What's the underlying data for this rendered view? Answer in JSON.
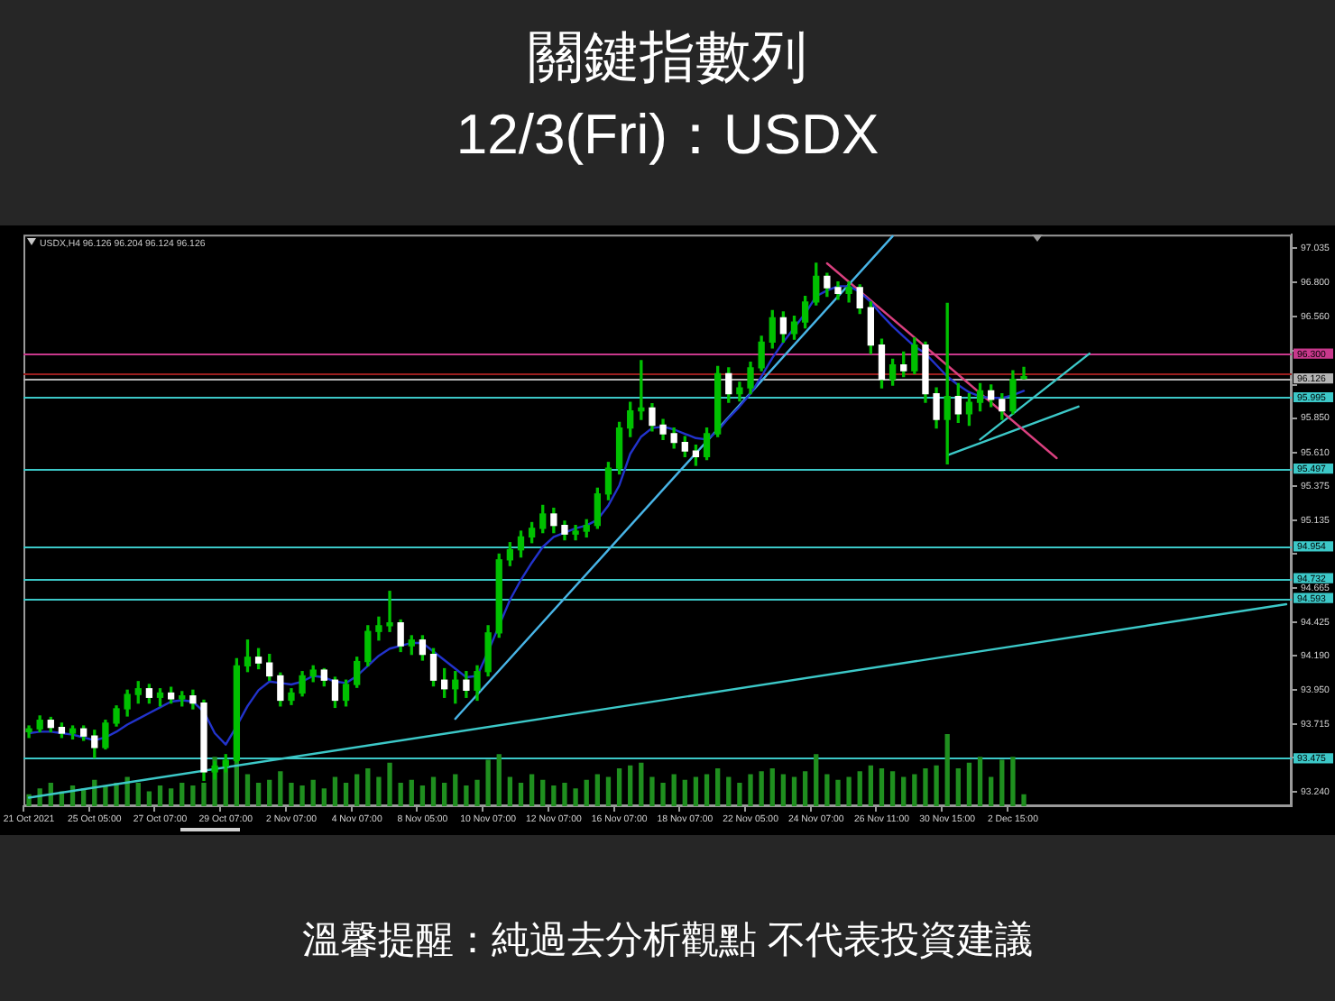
{
  "chart_data": {
    "type": "candlestick",
    "title": "關鍵指數列",
    "subtitle": "12/3(Fri)：USDX",
    "annotations": [
      "USDX,H4 96.126 96.204 96.124 96.126",
      "溫馨提醒：純過去分析觀點 不代表投資建議"
    ],
    "categories": [
      "21 Oct 2021",
      null,
      null,
      null,
      null,
      null,
      "25 Oct 05:00",
      null,
      null,
      null,
      null,
      null,
      "27 Oct 07:00",
      null,
      null,
      null,
      null,
      null,
      "29 Oct 07:00",
      null,
      null,
      null,
      null,
      null,
      "2 Nov 07:00",
      null,
      null,
      null,
      null,
      null,
      "4 Nov 07:00",
      null,
      null,
      null,
      null,
      null,
      "8 Nov 05:00",
      null,
      null,
      null,
      null,
      null,
      "10 Nov 07:00",
      null,
      null,
      null,
      null,
      null,
      "12 Nov 07:00",
      null,
      null,
      null,
      null,
      null,
      "16 Nov 07:00",
      null,
      null,
      null,
      null,
      null,
      "18 Nov 07:00",
      null,
      null,
      null,
      null,
      null,
      "22 Nov 05:00",
      null,
      null,
      null,
      null,
      null,
      "24 Nov 07:00",
      null,
      null,
      null,
      null,
      null,
      "26 Nov 11:00",
      null,
      null,
      null,
      null,
      null,
      "30 Nov 15:00",
      null,
      null,
      null,
      null,
      null,
      "2 Dec 15:00",
      null,
      null,
      null,
      null,
      null,
      null,
      null,
      null,
      null,
      null,
      null,
      null,
      null,
      null,
      null,
      null,
      null,
      null,
      null,
      null,
      null,
      null,
      null,
      null,
      null
    ],
    "color": "#00c000",
    "colors": [
      "#00c000",
      "#00c000",
      "#ffffff",
      "#ffffff",
      "#00c000",
      "#ffffff",
      "#ffffff",
      "#00c000",
      "#00c000",
      "#00c000",
      "#00c000",
      "#ffffff",
      "#00c000",
      "#ffffff",
      "#00c000",
      "#ffffff",
      "#ffffff",
      "#00c000",
      "#00c000",
      "#00c000",
      "#00c000",
      "#ffffff",
      "#ffffff",
      "#ffffff",
      "#00c000",
      "#00c000",
      "#00c000",
      "#ffffff",
      "#ffffff",
      "#00c000",
      "#00c000",
      "#00c000",
      "#00c000",
      "#00c000",
      "#ffffff",
      "#00c000",
      "#ffffff",
      "#ffffff",
      "#ffffff",
      "#00c000",
      "#ffffff",
      "#00c000",
      "#00c000",
      "#00c000",
      "#00c000",
      "#00c000",
      "#00c000",
      "#00c000",
      "#ffffff",
      "#ffffff",
      "#00c000",
      "#00c000",
      "#00c000",
      "#00c000",
      "#00c000",
      "#00c000",
      "#00c000",
      "#ffffff",
      "#ffffff",
      "#ffffff",
      "#ffffff",
      "#ffffff",
      "#00c000",
      "#00c000",
      "#ffffff",
      "#00c000",
      "#00c000",
      "#00c000",
      "#00c000",
      "#ffffff",
      "#00c000",
      "#00c000",
      "#00c000",
      "#ffffff",
      "#ffffff",
      "#00c000",
      "#ffffff",
      "#ffffff",
      "#ffffff",
      "#00c000",
      "#ffffff",
      "#00c000",
      "#ffffff",
      "#ffffff",
      "#00c000",
      "#ffffff",
      "#00c000",
      "#00c000",
      "#ffffff",
      "#ffffff",
      "#00c000",
      "#00c000",
      null,
      null,
      null,
      null,
      null,
      null,
      null,
      null,
      null,
      null,
      null,
      null,
      null,
      null,
      null,
      null,
      null,
      null,
      null,
      null,
      null,
      null,
      null,
      null
    ],
    "ohlc": [
      [
        93.66,
        93.7,
        93.62,
        93.68
      ],
      [
        93.68,
        93.77,
        93.66,
        93.74
      ],
      [
        93.74,
        93.76,
        93.66,
        93.69
      ],
      [
        93.69,
        93.72,
        93.62,
        93.65
      ],
      [
        93.65,
        93.7,
        93.61,
        93.68
      ],
      [
        93.68,
        93.7,
        93.6,
        93.63
      ],
      [
        93.63,
        93.67,
        93.48,
        93.55
      ],
      [
        93.55,
        93.74,
        93.54,
        93.72
      ],
      [
        93.72,
        93.84,
        93.7,
        93.82
      ],
      [
        93.82,
        93.95,
        93.77,
        93.92
      ],
      [
        93.92,
        94.01,
        93.86,
        93.96
      ],
      [
        93.96,
        93.99,
        93.86,
        93.9
      ],
      [
        93.9,
        93.96,
        93.84,
        93.93
      ],
      [
        93.93,
        93.97,
        93.86,
        93.89
      ],
      [
        93.89,
        93.94,
        93.84,
        93.91
      ],
      [
        93.91,
        93.95,
        93.82,
        93.86
      ],
      [
        93.86,
        93.88,
        93.32,
        93.38
      ],
      [
        93.38,
        93.45,
        93.33,
        93.42
      ],
      [
        93.42,
        93.5,
        93.38,
        93.46
      ],
      [
        93.46,
        94.17,
        93.45,
        94.12
      ],
      [
        94.12,
        94.3,
        94.08,
        94.18
      ],
      [
        94.18,
        94.24,
        94.1,
        94.14
      ],
      [
        94.14,
        94.2,
        94.02,
        94.05
      ],
      [
        94.05,
        94.07,
        93.84,
        93.88
      ],
      [
        93.88,
        93.96,
        93.85,
        93.93
      ],
      [
        93.93,
        94.08,
        93.91,
        94.05
      ],
      [
        94.05,
        94.12,
        94.01,
        94.09
      ],
      [
        94.09,
        94.1,
        93.98,
        94.02
      ],
      [
        94.02,
        94.04,
        93.83,
        93.88
      ],
      [
        93.88,
        94.02,
        93.84,
        93.99
      ],
      [
        93.99,
        94.18,
        93.97,
        94.15
      ],
      [
        94.15,
        94.4,
        94.12,
        94.36
      ],
      [
        94.36,
        94.46,
        94.3,
        94.4
      ],
      [
        94.4,
        94.64,
        94.36,
        94.42
      ],
      [
        94.42,
        94.44,
        94.22,
        94.26
      ],
      [
        94.26,
        94.33,
        94.2,
        94.3
      ],
      [
        94.3,
        94.33,
        94.16,
        94.2
      ],
      [
        94.2,
        94.24,
        93.98,
        94.02
      ],
      [
        94.02,
        94.1,
        93.9,
        93.96
      ],
      [
        93.96,
        94.08,
        93.86,
        94.02
      ],
      [
        94.02,
        94.08,
        93.9,
        93.95
      ],
      [
        93.95,
        94.12,
        93.88,
        94.08
      ],
      [
        94.08,
        94.4,
        94.05,
        94.35
      ],
      [
        94.35,
        94.9,
        94.32,
        94.86
      ],
      [
        94.86,
        94.98,
        94.82,
        94.93
      ],
      [
        94.93,
        95.06,
        94.88,
        95.02
      ],
      [
        95.02,
        95.12,
        94.98,
        95.08
      ],
      [
        95.08,
        95.24,
        95.05,
        95.18
      ],
      [
        95.18,
        95.22,
        95.05,
        95.1
      ],
      [
        95.1,
        95.13,
        95.0,
        95.04
      ],
      [
        95.04,
        95.1,
        95.0,
        95.06
      ],
      [
        95.06,
        95.14,
        95.02,
        95.1
      ],
      [
        95.1,
        95.36,
        95.08,
        95.32
      ],
      [
        95.32,
        95.54,
        95.28,
        95.5
      ],
      [
        95.5,
        95.82,
        95.46,
        95.78
      ],
      [
        95.78,
        95.96,
        95.72,
        95.9
      ],
      [
        95.9,
        96.25,
        95.84,
        95.92
      ],
      [
        95.92,
        95.95,
        95.76,
        95.8
      ],
      [
        95.8,
        95.84,
        95.7,
        95.74
      ],
      [
        95.74,
        95.78,
        95.64,
        95.68
      ],
      [
        95.68,
        95.72,
        95.58,
        95.62
      ],
      [
        95.62,
        95.66,
        95.52,
        95.58
      ],
      [
        95.58,
        95.78,
        95.56,
        95.74
      ],
      [
        95.74,
        96.21,
        95.72,
        96.16
      ],
      [
        96.16,
        96.2,
        95.96,
        96.02
      ],
      [
        96.02,
        96.1,
        95.97,
        96.06
      ],
      [
        96.06,
        96.24,
        96.02,
        96.2
      ],
      [
        96.2,
        96.42,
        96.18,
        96.38
      ],
      [
        96.38,
        96.6,
        96.34,
        96.55
      ],
      [
        96.55,
        96.59,
        96.38,
        96.44
      ],
      [
        96.44,
        96.56,
        96.4,
        96.52
      ],
      [
        96.52,
        96.7,
        96.48,
        96.66
      ],
      [
        96.66,
        96.93,
        96.64,
        96.84
      ],
      [
        96.84,
        96.86,
        96.7,
        96.76
      ],
      [
        96.76,
        96.8,
        96.68,
        96.72
      ],
      [
        96.72,
        96.8,
        96.66,
        96.76
      ],
      [
        96.76,
        96.78,
        96.58,
        96.62
      ],
      [
        96.62,
        96.66,
        96.3,
        96.36
      ],
      [
        96.36,
        96.4,
        96.06,
        96.12
      ],
      [
        96.12,
        96.26,
        96.08,
        96.22
      ],
      [
        96.22,
        96.31,
        96.14,
        96.18
      ],
      [
        96.18,
        96.41,
        96.16,
        96.36
      ],
      [
        96.36,
        96.38,
        95.96,
        96.02
      ],
      [
        96.02,
        96.06,
        95.78,
        95.84
      ],
      [
        95.84,
        96.65,
        95.53,
        96.0
      ],
      [
        96.0,
        96.09,
        95.82,
        95.88
      ],
      [
        95.88,
        96.02,
        95.8,
        95.96
      ],
      [
        95.96,
        96.09,
        95.9,
        96.04
      ],
      [
        96.04,
        96.08,
        95.93,
        95.98
      ],
      [
        95.98,
        96.02,
        95.84,
        95.9
      ],
      [
        95.9,
        96.18,
        95.88,
        96.12
      ],
      [
        96.126,
        96.204,
        96.124,
        96.126
      ],
      null,
      null,
      null,
      null,
      null,
      null,
      null,
      null,
      null,
      null,
      null,
      null,
      null,
      null,
      null,
      null,
      null,
      null,
      null,
      null,
      null,
      null,
      null,
      null
    ],
    "series": [
      {
        "type": "bar",
        "color": "#1f8f1f",
        "values": [
          93.22,
          93.26,
          93.3,
          93.24,
          93.28,
          93.26,
          93.32,
          93.28,
          93.3,
          93.34,
          93.3,
          93.24,
          93.28,
          93.26,
          93.3,
          93.28,
          93.3,
          93.48,
          93.4,
          93.46,
          93.36,
          93.3,
          93.32,
          93.38,
          93.3,
          93.28,
          93.32,
          93.26,
          93.34,
          93.3,
          93.36,
          93.4,
          93.34,
          93.44,
          93.3,
          93.32,
          93.28,
          93.34,
          93.3,
          93.36,
          93.28,
          93.32,
          93.46,
          93.5,
          93.34,
          93.3,
          93.36,
          93.32,
          93.28,
          93.3,
          93.26,
          93.32,
          93.36,
          93.34,
          93.4,
          93.42,
          93.44,
          93.34,
          93.3,
          93.36,
          93.32,
          93.34,
          93.36,
          93.4,
          93.34,
          93.3,
          93.36,
          93.38,
          93.4,
          93.36,
          93.34,
          93.38,
          93.5,
          93.36,
          93.32,
          93.34,
          93.38,
          93.42,
          93.4,
          93.38,
          93.34,
          93.36,
          93.4,
          93.42,
          93.64,
          93.4,
          93.44,
          93.48,
          93.34,
          93.46,
          93.48,
          93.22,
          null,
          null,
          null,
          null,
          null,
          null,
          null,
          null,
          null,
          null,
          null,
          null,
          null,
          null,
          null,
          null,
          null,
          null,
          null,
          null,
          null,
          null,
          null,
          null
        ]
      },
      {
        "type": "line",
        "color": "#2233cc",
        "values": [
          93.65,
          93.66,
          93.66,
          93.65,
          93.64,
          93.62,
          93.6,
          93.62,
          93.66,
          93.71,
          93.75,
          93.79,
          93.83,
          93.87,
          93.88,
          93.87,
          93.8,
          93.65,
          93.57,
          93.7,
          93.84,
          93.95,
          94.01,
          94.0,
          93.99,
          94.01,
          94.05,
          94.04,
          94.01,
          94.0,
          94.05,
          94.12,
          94.19,
          94.24,
          94.26,
          94.28,
          94.28,
          94.22,
          94.16,
          94.1,
          94.04,
          94.05,
          94.22,
          94.4,
          94.58,
          94.72,
          94.84,
          94.95,
          95.02,
          95.05,
          95.08,
          95.1,
          95.14,
          95.24,
          95.38,
          95.6,
          95.72,
          95.78,
          95.79,
          95.77,
          95.74,
          95.71,
          95.7,
          95.76,
          95.85,
          95.93,
          96.02,
          96.14,
          96.27,
          96.38,
          96.48,
          96.58,
          96.7,
          96.74,
          96.77,
          96.77,
          96.73,
          96.66,
          96.57,
          96.49,
          96.42,
          96.35,
          96.3,
          96.22,
          96.14,
          96.08,
          96.03,
          96.0,
          95.99,
          95.99,
          96.01,
          96.04,
          null,
          null,
          null,
          null,
          null,
          null,
          null,
          null,
          null,
          null,
          null,
          null,
          null,
          null,
          null,
          null,
          null,
          null,
          null,
          null,
          null,
          null,
          null,
          null
        ]
      },
      {
        "type": "line",
        "color": "#3cc8c8",
        "values": [
          93.2,
          null,
          null,
          null,
          null,
          null,
          null,
          null,
          null,
          null,
          null,
          null,
          null,
          null,
          null,
          null,
          null,
          null,
          null,
          null,
          null,
          null,
          null,
          null,
          null,
          null,
          null,
          null,
          null,
          null,
          null,
          null,
          null,
          null,
          null,
          null,
          null,
          null,
          null,
          null,
          null,
          null,
          null,
          null,
          null,
          null,
          null,
          null,
          null,
          null,
          null,
          null,
          null,
          null,
          null,
          null,
          null,
          null,
          null,
          null,
          null,
          null,
          null,
          null,
          null,
          null,
          null,
          null,
          null,
          null,
          null,
          null,
          null,
          null,
          null,
          null,
          null,
          null,
          null,
          null,
          null,
          null,
          null,
          null,
          null,
          null,
          null,
          null,
          null,
          null,
          null,
          null,
          null,
          null,
          null,
          null,
          null,
          null,
          null,
          null,
          null,
          null,
          null,
          null,
          null,
          null,
          null,
          null,
          null,
          null,
          null,
          null,
          null,
          null,
          null,
          94.55
        ]
      },
      {
        "type": "line",
        "color": "#48b4e6",
        "values": [
          null,
          null,
          null,
          null,
          null,
          null,
          null,
          null,
          null,
          null,
          null,
          null,
          null,
          null,
          null,
          null,
          null,
          null,
          null,
          null,
          null,
          null,
          null,
          null,
          null,
          null,
          null,
          null,
          null,
          null,
          null,
          null,
          null,
          null,
          null,
          null,
          null,
          null,
          null,
          93.75,
          null,
          null,
          null,
          null,
          null,
          null,
          null,
          null,
          null,
          null,
          null,
          null,
          null,
          null,
          null,
          null,
          null,
          null,
          null,
          null,
          null,
          null,
          null,
          null,
          null,
          null,
          null,
          null,
          null,
          null,
          null,
          null,
          null,
          null,
          null,
          null,
          null,
          null,
          null,
          97.12,
          null,
          null,
          null,
          null,
          null,
          null,
          null,
          null,
          null,
          null,
          null,
          null,
          null,
          null,
          null,
          null,
          null,
          null,
          null,
          null,
          null,
          null,
          null,
          null,
          null,
          null,
          null,
          null,
          null,
          null,
          null,
          null,
          null,
          null,
          null,
          null
        ]
      },
      {
        "type": "line",
        "color": "#d9407f",
        "values": [
          null,
          null,
          null,
          null,
          null,
          null,
          null,
          null,
          null,
          null,
          null,
          null,
          null,
          null,
          null,
          null,
          null,
          null,
          null,
          null,
          null,
          null,
          null,
          null,
          null,
          null,
          null,
          null,
          null,
          null,
          null,
          null,
          null,
          null,
          null,
          null,
          null,
          null,
          null,
          null,
          null,
          null,
          null,
          null,
          null,
          null,
          null,
          null,
          null,
          null,
          null,
          null,
          null,
          null,
          null,
          null,
          null,
          null,
          null,
          null,
          null,
          null,
          null,
          null,
          null,
          null,
          null,
          null,
          null,
          null,
          null,
          null,
          null,
          96.93,
          null,
          null,
          null,
          null,
          null,
          null,
          null,
          null,
          null,
          null,
          null,
          null,
          null,
          null,
          null,
          null,
          null,
          null,
          null,
          null,
          95.57,
          null,
          null,
          null,
          null,
          null,
          null,
          null,
          null,
          null,
          null,
          null,
          null,
          null,
          null,
          null,
          null,
          null,
          null,
          null,
          null,
          null
        ]
      },
      {
        "type": "line",
        "color": "#3cc8c8",
        "values": [
          null,
          null,
          null,
          null,
          null,
          null,
          null,
          null,
          null,
          null,
          null,
          null,
          null,
          null,
          null,
          null,
          null,
          null,
          null,
          null,
          null,
          null,
          null,
          null,
          null,
          null,
          null,
          null,
          null,
          null,
          null,
          null,
          null,
          null,
          null,
          null,
          null,
          null,
          null,
          null,
          null,
          null,
          null,
          null,
          null,
          null,
          null,
          null,
          null,
          null,
          null,
          null,
          null,
          null,
          null,
          null,
          null,
          null,
          null,
          null,
          null,
          null,
          null,
          null,
          null,
          null,
          null,
          null,
          null,
          null,
          null,
          null,
          null,
          null,
          null,
          null,
          null,
          null,
          null,
          null,
          null,
          null,
          null,
          null,
          null,
          null,
          null,
          95.7,
          null,
          null,
          null,
          null,
          null,
          null,
          null,
          null,
          null,
          96.3,
          null,
          null,
          null,
          null,
          null,
          null,
          null,
          null,
          null,
          null,
          null,
          null,
          null,
          null,
          null,
          null,
          null,
          null
        ]
      },
      {
        "type": "line",
        "color": "#3cc8c8",
        "values": [
          null,
          null,
          null,
          null,
          null,
          null,
          null,
          null,
          null,
          null,
          null,
          null,
          null,
          null,
          null,
          null,
          null,
          null,
          null,
          null,
          null,
          null,
          null,
          null,
          null,
          null,
          null,
          null,
          null,
          null,
          null,
          null,
          null,
          null,
          null,
          null,
          null,
          null,
          null,
          null,
          null,
          null,
          null,
          null,
          null,
          null,
          null,
          null,
          null,
          null,
          null,
          null,
          null,
          null,
          null,
          null,
          null,
          null,
          null,
          null,
          null,
          null,
          null,
          null,
          null,
          null,
          null,
          null,
          null,
          null,
          null,
          null,
          null,
          null,
          null,
          null,
          null,
          null,
          null,
          null,
          null,
          null,
          null,
          null,
          95.59,
          null,
          null,
          null,
          null,
          null,
          null,
          null,
          null,
          null,
          null,
          null,
          95.93,
          null,
          null,
          null,
          null,
          null,
          null,
          null,
          null,
          null,
          null,
          null,
          null,
          null,
          null,
          null,
          null,
          null,
          null,
          null
        ]
      }
    ],
    "ref_lines": [
      {
        "axis": "y",
        "value": 96.3,
        "label": "96.300",
        "color": "#c8388c"
      },
      {
        "axis": "y",
        "value": 96.16,
        "color": "#9b1f1f"
      },
      {
        "axis": "y",
        "value": 96.126,
        "label": "96.126",
        "color": "#b4b4b4"
      },
      {
        "axis": "y",
        "value": 95.995,
        "label": "95.995",
        "color": "#3cc8c8"
      },
      {
        "axis": "y",
        "value": 95.497,
        "label": "95.497",
        "color": "#3cc8c8"
      },
      {
        "axis": "y",
        "value": 94.954,
        "label": "94.954",
        "color": "#3cc8c8"
      },
      {
        "axis": "y",
        "value": 94.732,
        "label": "94.732",
        "color": "#3cc8c8"
      },
      {
        "axis": "y",
        "value": 94.593,
        "label": "94.593",
        "color": "#3cc8c8"
      },
      {
        "axis": "y",
        "value": 93.475,
        "label": "93.475",
        "color": "#3cc8c8"
      }
    ],
    "ylim": [
      93.14,
      97.13
    ],
    "yticks": [
      97.035,
      {
        "value": 96.8,
        "label": "96.800"
      },
      {
        "value": 96.56,
        "label": "96.560"
      },
      {
        "value": 96.32,
        "label": null
      },
      {
        "value": 96.08,
        "label": null
      },
      {
        "value": 95.85,
        "label": "95.850"
      },
      {
        "value": 95.61,
        "label": "95.610"
      },
      95.375,
      95.135,
      {
        "value": 94.9,
        "label": null
      },
      94.665,
      94.425,
      {
        "value": 94.19,
        "label": "94.190"
      },
      {
        "value": 93.95,
        "label": "93.950"
      },
      93.715,
      {
        "value": 93.48,
        "label": null
      },
      {
        "value": 93.24,
        "label": "93.240"
      }
    ],
    "grid": false,
    "legend": false
  }
}
